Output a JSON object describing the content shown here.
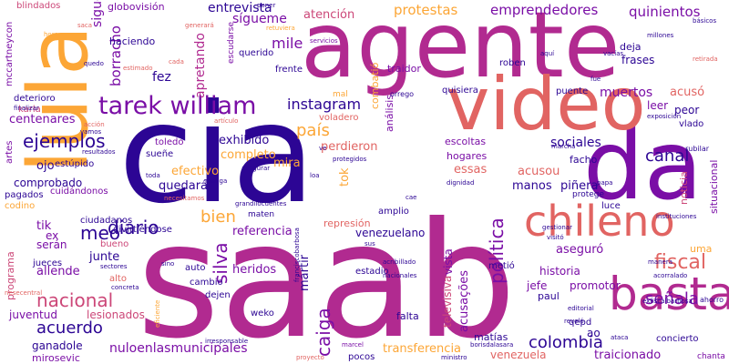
{
  "palette": {
    "indigo": "#2c0594",
    "purple": "#7a0ea6",
    "magenta": "#b12a90",
    "pink": "#cc4778",
    "salmon": "#e16462",
    "orange": "#f2844b",
    "amber": "#fca636",
    "yellow": "#f0f921"
  },
  "words": {
    "cia": "cia",
    "saab": "saab",
    "agente": "agente",
    "lula": "lula",
    "da": "da",
    "video": "video",
    "chileno": "chileno",
    "basta": "basta",
    "tarek_william": "tarek william",
    "fiscal": "fiscal",
    "diario": "diario",
    "ejemplos": "ejemplos",
    "nacional": "nacional",
    "politica": "política",
    "meo": "meo",
    "silva": "silva",
    "caiga": "caiga",
    "bien": "bien",
    "colombia": "colombia",
    "acuerdo": "acuerdo",
    "senala": "señala",
    "instagram": "instagram",
    "pais": "país",
    "canal": "canal",
    "mile": "mile",
    "fez": "fez",
    "borracho": "borracho",
    "protestas": "protestas",
    "emprendedores": "emprendedores",
    "quinientos": "quinientos",
    "entrevista": "entrevista",
    "sigueme": "sígueme",
    "atencion": "atención",
    "globovision": "globovisión",
    "blindados": "blindados",
    "sigue": "sigue",
    "haciendo": "haciendo",
    "apretando": "apretando",
    "mccartneycon": "mccartneycon",
    "muertos": "muertos",
    "acuso": "acusó",
    "leer": "leer",
    "peor": "peor",
    "centenares": "centenares",
    "exhibido": "exhibido",
    "perdieron": "perdieron",
    "sociales": "sociales",
    "ojo": "ojo",
    "efectivo": "efectivo",
    "completo": "completo",
    "mira": "mira",
    "tok": "tok",
    "essas": "essas",
    "acusou": "acusou",
    "facho": "facho",
    "comprobado": "comprobado",
    "quedara": "quedará",
    "manos": "manos",
    "pinera": "piñera",
    "referencia": "referencia",
    "venezuelano": "venezuelano",
    "tik": "tik",
    "ex": "ex",
    "seran": "serán",
    "junte": "junte",
    "allende": "allende",
    "heridos": "heridos",
    "martir": "mártir",
    "vista": "vista",
    "asegure": "aseguró",
    "historia": "historia",
    "promotor": "promotor",
    "jefe": "jefe",
    "juventud": "juventud",
    "lesionados": "lesionados",
    "ganadole": "ganadole",
    "nuloenlasmunicipales": "nuloenlasmunicipales",
    "transferencia": "transferencia",
    "traicionado": "traicionado",
    "venezuela": "venezuela",
    "acusacoes": "acusações",
    "televisiva": "televisiva",
    "matias": "matías",
    "paul": "paul",
    "falta": "falta",
    "ao": "ao",
    "mirosevic": "mirosevic",
    "programa": "programa",
    "situacional": "situacional",
    "noticia": "noticia",
    "uma": "uma",
    "analisis": "análisis",
    "combatio": "combatió",
    "frases": "frases",
    "deja": "deja",
    "traidor": "traidor",
    "roben": "roben",
    "frente": "frente",
    "querido": "querido",
    "escoltas": "escoltas",
    "hogares": "hogares",
    "suene": "sueñe",
    "toledo": "toledo",
    "estupido": "estúpido",
    "pagados": "pagados",
    "cuidadonos": "cuidándonos",
    "codino": "codino",
    "ciudadanos": "ciudadanos",
    "jueces": "jueces",
    "divirtiendose": "divirtiéndose",
    "bueno": "bueno",
    "represion": "represión",
    "amplio": "amplio",
    "estadio": "estadio",
    "metio": "metió",
    "weko": "weko",
    "auto": "auto",
    "cambio": "cambio",
    "dejen": "dejen",
    "pocos": "pocos",
    "concierto": "concierto",
    "qepd": "qepd",
    "karla": "karla",
    "deterioro": "deterioro",
    "artes": "artes",
    "escudarse": "escudarse",
    "voladero": "voladero",
    "quisiera": "quisiera",
    "puente": "puente",
    "vlado": "vlado",
    "protege": "protege",
    "luce": "luce",
    "alto": "alto",
    "chanta": "chanta",
    "ahorro": "ahorro",
    "mal": "mal",
    "orrego": "orrego",
    "hora": "hora",
    "saca": "saca",
    "retuviera": "retuviera",
    "servicios": "servicios",
    "millones": "millones",
    "vacias": "vacías",
    "ministro": "ministro",
    "marcel": "marcel",
    "proyecto": "proyecto",
    "editorial": "editorial",
    "ataca": "ataca",
    "revelo": "reveló",
    "exfiscalbarbosa": "exfiscalbarbosa",
    "acorralado": "acorralado",
    "rubilar": "rubilar",
    "exposicion": "exposición",
    "basicos": "básicos",
    "retirada": "retirada",
    "gestionar": "gestionar",
    "visito": "visitó",
    "marcha": "marcha",
    "sectores": "sectores",
    "finalizar": "finalizar",
    "acribillado": "acribillado",
    "franciscobarbosa": "franciscobarbosa",
    "nacionales": "nacionales",
    "concreta": "concreta",
    "nesecentral": "nesecentral",
    "irresponsable": "irresponsable",
    "grandilocuentes": "grandilocuentes",
    "maten": "maten",
    "necesitamos": "necesitamos",
    "manga": "manga",
    "asegurar": "asegurar",
    "protegidos": "protegidos",
    "dignidad": "dignidad",
    "cae": "cae",
    "papa": "papa",
    "manera": "manera",
    "instituciones": "instituciones",
    "borisdalasara": "borisdalasara",
    "sino": "sino",
    "eficiente": "eficiente",
    "toda": "toda",
    "poner": "poner",
    "resultados": "resultados",
    "vamos": "vamos",
    "accion": "acción",
    "estimado": "estimado",
    "quedo": "quedo",
    "articulo": "artículo",
    "generara": "generará",
    "cada": "cada",
    "fue": "fue",
    "aqui": "aquí",
    "ve": "ve",
    "loa": "loa",
    "sus": "sus"
  }
}
